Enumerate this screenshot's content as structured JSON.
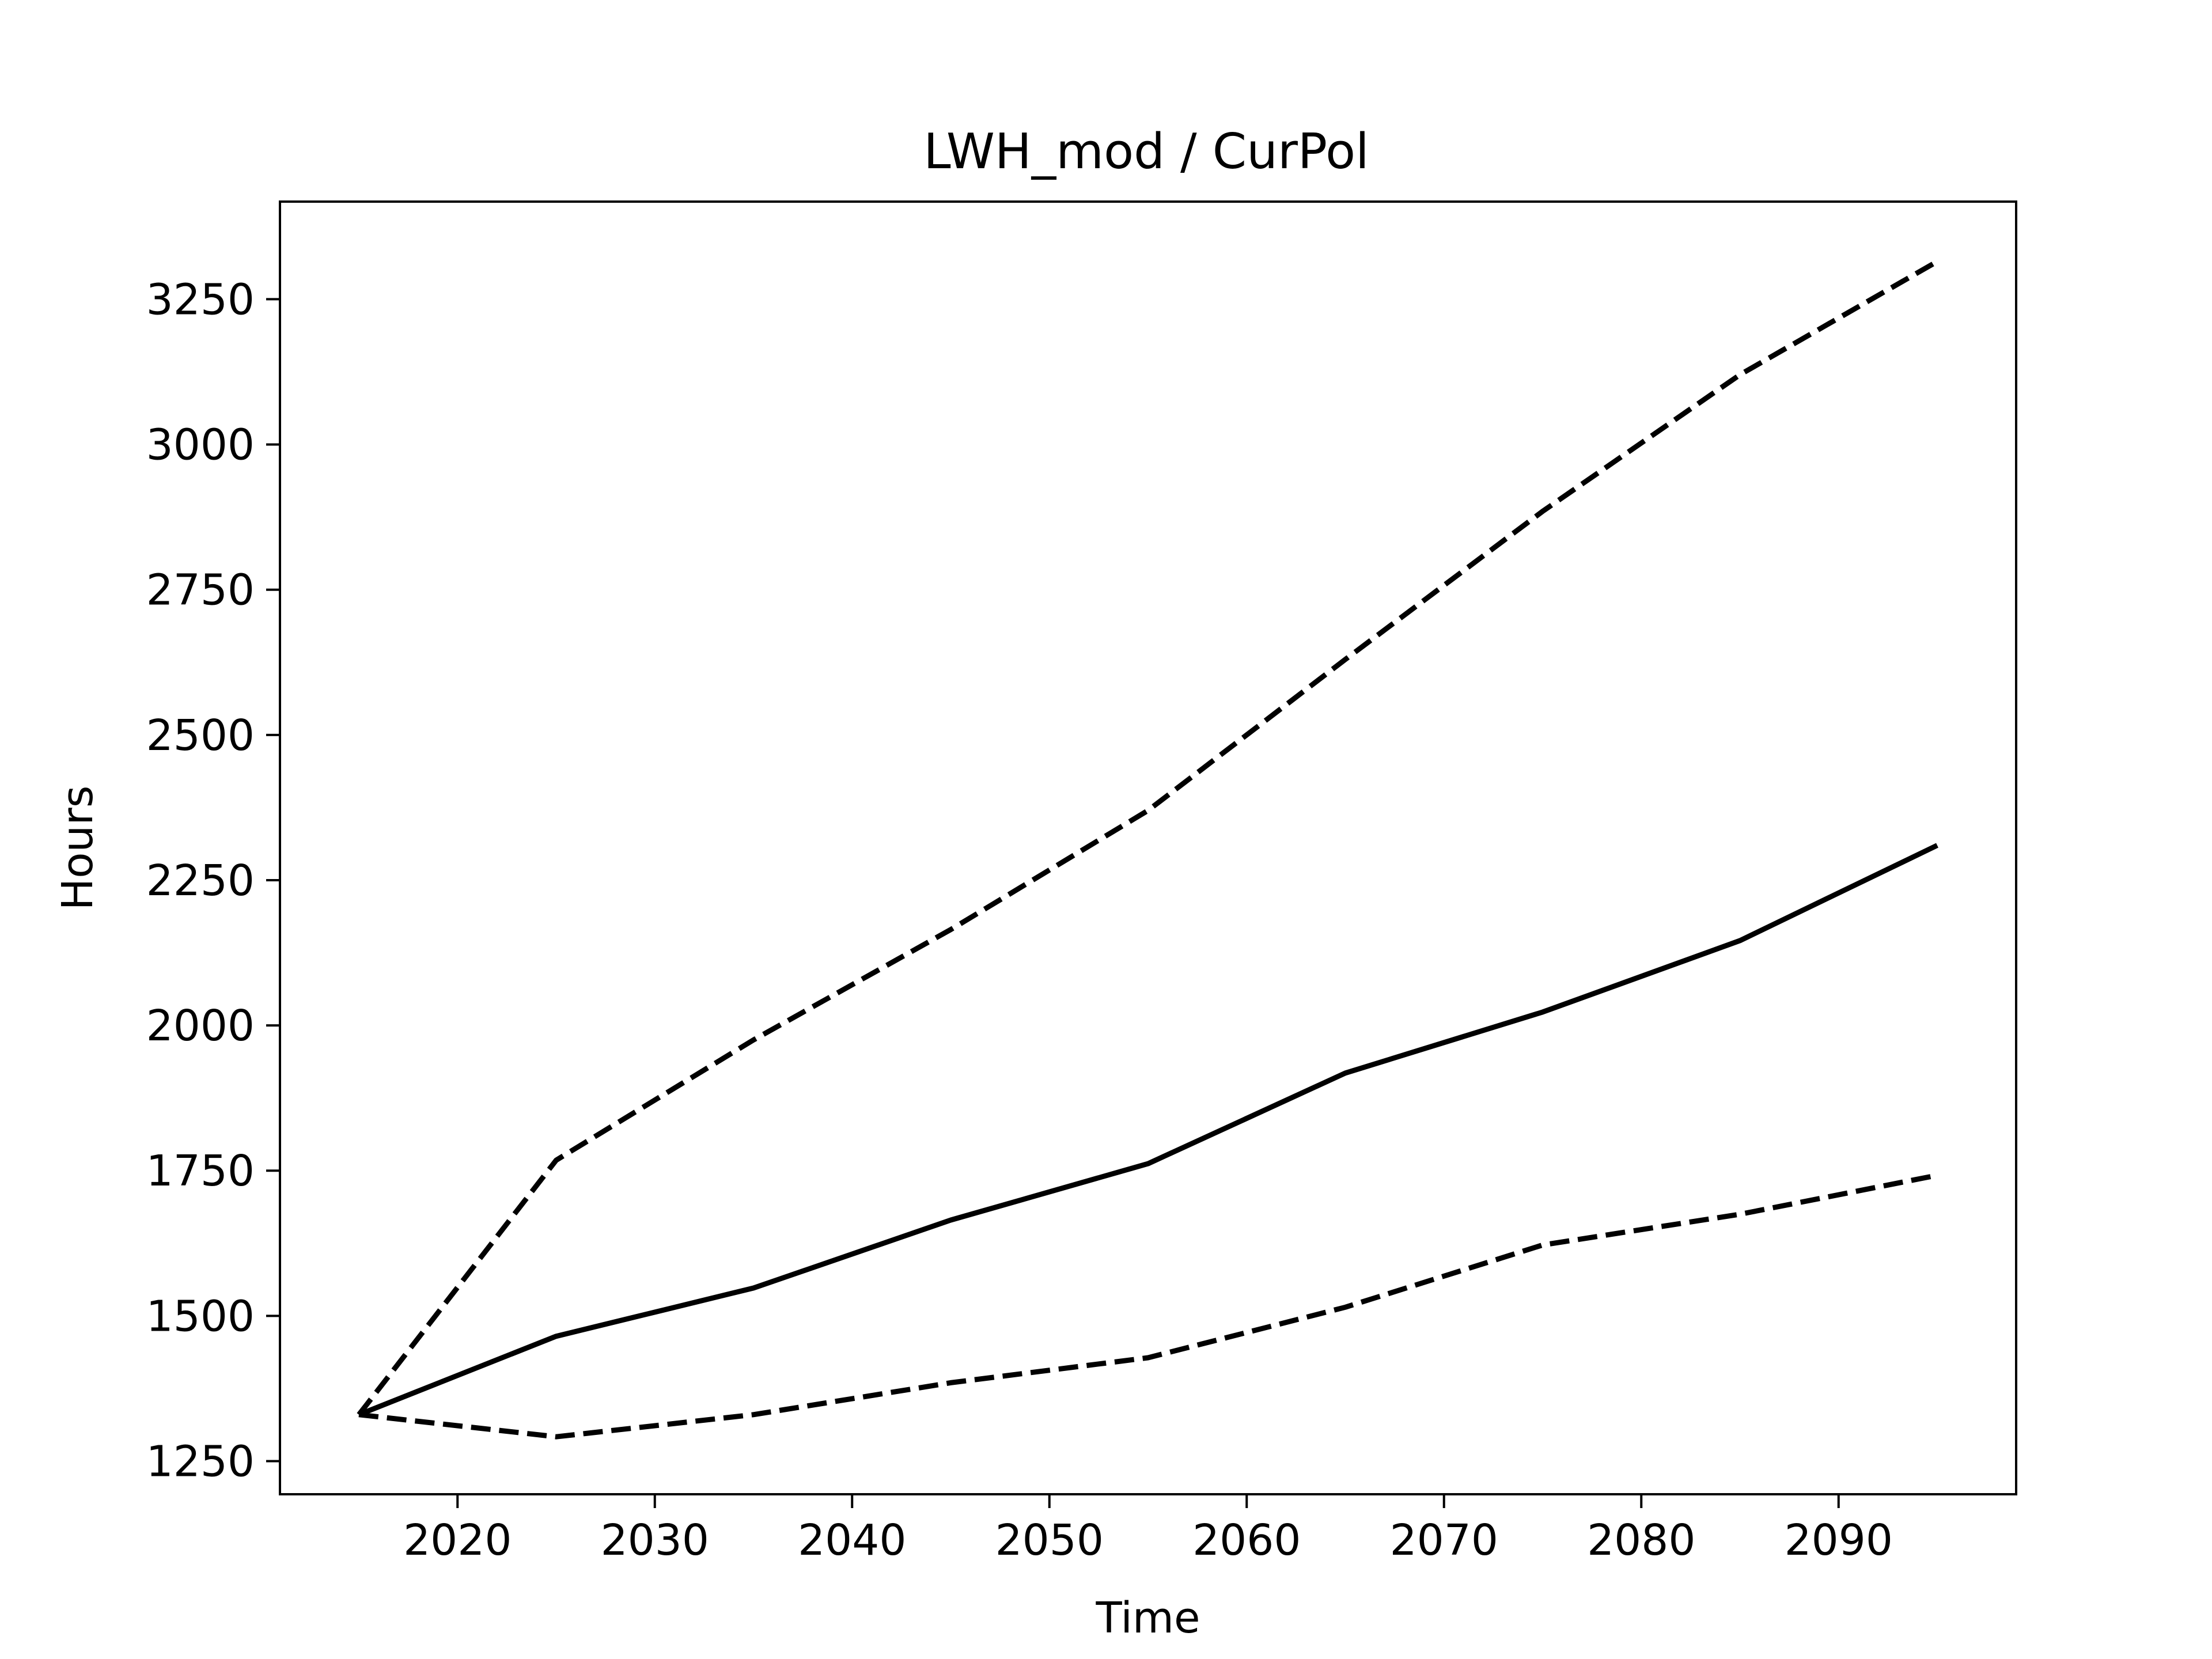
{
  "chart_data": {
    "type": "line",
    "title": "LWH_mod / CurPol",
    "xlabel": "Time",
    "ylabel": "Hours",
    "xlim": [
      2011,
      2099
    ],
    "ylim": [
      1193,
      3418
    ],
    "xticks": [
      2020,
      2030,
      2040,
      2050,
      2060,
      2070,
      2080,
      2090
    ],
    "yticks": [
      1250,
      1500,
      1750,
      2000,
      2250,
      2500,
      2750,
      3000,
      3250
    ],
    "grid": false,
    "x": [
      2015,
      2025,
      2035,
      2045,
      2055,
      2065,
      2075,
      2085,
      2095
    ],
    "series": [
      {
        "style": "dashed",
        "color": "#000000",
        "values": [
          1330,
          1768,
          1975,
          2165,
          2370,
          2630,
          2885,
          3120,
          3315
        ]
      },
      {
        "style": "solid",
        "color": "#000000",
        "values": [
          1330,
          1465,
          1548,
          1665,
          1762,
          1918,
          2023,
          2146,
          2310
        ]
      },
      {
        "style": "dashed",
        "color": "#000000",
        "values": [
          1330,
          1292,
          1330,
          1385,
          1428,
          1515,
          1622,
          1675,
          1742
        ]
      }
    ]
  }
}
